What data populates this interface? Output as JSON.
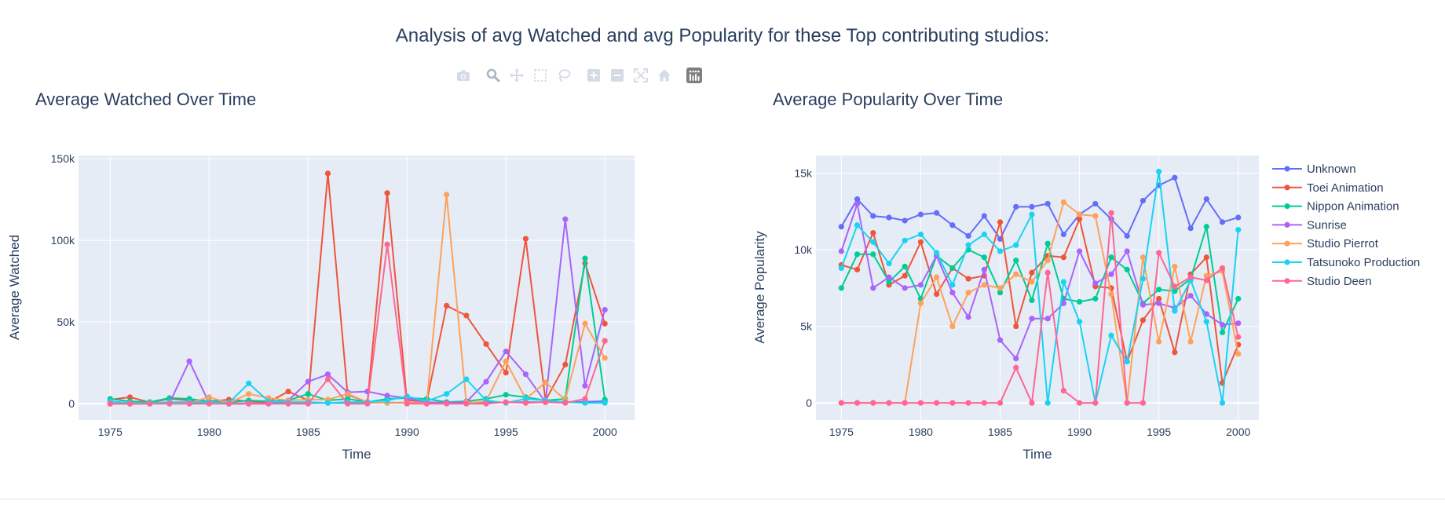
{
  "title": "Analysis of avg Watched and avg Popularity for these Top contributing studios:",
  "toolbar": {
    "icons": [
      "camera-icon",
      "zoom-icon",
      "pan-icon",
      "box-select-icon",
      "lasso-icon",
      "zoom-in-icon",
      "zoom-out-icon",
      "autoscale-icon",
      "reset-axes-icon",
      "plotly-logo-icon"
    ]
  },
  "colors": {
    "background": "#ffffff",
    "plot_bg": "#e5ecf6",
    "grid": "#ffffff",
    "text": "#2a3f5f",
    "series": [
      "#636efa",
      "#EF553B",
      "#00cc96",
      "#ab63fa",
      "#FFA15A",
      "#19d3f3",
      "#FF6692"
    ]
  },
  "chart_data": [
    {
      "type": "line",
      "title": "Average Watched Over Time",
      "xlabel": "Time",
      "ylabel": "Average Watched",
      "xlim": [
        1973.4,
        2001.5
      ],
      "ylim": [
        -10000,
        152000
      ],
      "xticks": [
        1975,
        1980,
        1985,
        1990,
        1995,
        2000
      ],
      "xtick_labels": [
        "1975",
        "1980",
        "1985",
        "1990",
        "1995",
        "2000"
      ],
      "yticks": [
        0,
        50000,
        100000,
        150000
      ],
      "ytick_labels": [
        "0",
        "50k",
        "100k",
        "150k"
      ],
      "x": [
        1975,
        1976,
        1977,
        1978,
        1979,
        1980,
        1981,
        1982,
        1983,
        1984,
        1985,
        1986,
        1987,
        1988,
        1989,
        1990,
        1991,
        1992,
        1993,
        1994,
        1995,
        1996,
        1997,
        1998,
        1999,
        2000
      ],
      "series": [
        {
          "name": "Unknown",
          "values": [
            200,
            200,
            200,
            200,
            200,
            300,
            300,
            300,
            300,
            400,
            500,
            500,
            500,
            600,
            600,
            600,
            700,
            700,
            700,
            800,
            800,
            900,
            900,
            1000,
            1200,
            1500
          ]
        },
        {
          "name": "Toei Animation",
          "values": [
            2500,
            4000,
            800,
            3000,
            2000,
            1500,
            2500,
            1500,
            1000,
            7500,
            2000,
            141000,
            5500,
            1000,
            129000,
            2000,
            1500,
            60000,
            54000,
            36500,
            19000,
            101000,
            2000,
            24000,
            86000,
            49000
          ]
        },
        {
          "name": "Nippon Animation",
          "values": [
            3000,
            1500,
            1000,
            3500,
            3000,
            1500,
            1000,
            2000,
            1500,
            2000,
            6000,
            2000,
            3000,
            1000,
            3000,
            3500,
            3000,
            1000,
            1500,
            3000,
            5500,
            4000,
            2000,
            3000,
            89000,
            2500
          ]
        },
        {
          "name": "Sunrise",
          "values": [
            0,
            0,
            0,
            500,
            26000,
            500,
            0,
            0,
            0,
            2000,
            13500,
            18000,
            7000,
            7500,
            5000,
            3500,
            1000,
            500,
            1000,
            13500,
            32000,
            18000,
            1000,
            113000,
            11000,
            57500
          ]
        },
        {
          "name": "Studio Pierrot",
          "values": [
            0,
            0,
            0,
            500,
            500,
            4000,
            500,
            6000,
            3500,
            2000,
            2500,
            2500,
            6000,
            1000,
            500,
            500,
            500,
            128000,
            500,
            1500,
            26000,
            3000,
            13000,
            2500,
            49000,
            28000
          ]
        },
        {
          "name": "Tatsunoko Production",
          "values": [
            1500,
            500,
            500,
            1000,
            1000,
            1000,
            500,
            12500,
            1500,
            1000,
            1000,
            500,
            1000,
            1000,
            2000,
            4500,
            1500,
            6000,
            15000,
            2000,
            500,
            3000,
            2000,
            1000,
            500,
            500
          ]
        },
        {
          "name": "Studio Deen",
          "values": [
            0,
            0,
            0,
            0,
            0,
            0,
            0,
            0,
            0,
            0,
            0,
            15000,
            0,
            0,
            97500,
            0,
            0,
            0,
            0,
            0,
            1000,
            500,
            1000,
            500,
            3000,
            38500
          ]
        }
      ]
    },
    {
      "type": "line",
      "title": "Average Popularity Over Time",
      "xlabel": "Time",
      "ylabel": "Average Popularity",
      "xlim": [
        1973.4,
        2001.3
      ],
      "ylim": [
        -1120,
        16150
      ],
      "xticks": [
        1975,
        1980,
        1985,
        1990,
        1995,
        2000
      ],
      "xtick_labels": [
        "1975",
        "1980",
        "1985",
        "1990",
        "1995",
        "2000"
      ],
      "yticks": [
        0,
        5000,
        10000,
        15000
      ],
      "ytick_labels": [
        "0",
        "5k",
        "10k",
        "15k"
      ],
      "x": [
        1975,
        1976,
        1977,
        1978,
        1979,
        1980,
        1981,
        1982,
        1983,
        1984,
        1985,
        1986,
        1987,
        1988,
        1989,
        1990,
        1991,
        1992,
        1993,
        1994,
        1995,
        1996,
        1997,
        1998,
        1999,
        2000
      ],
      "series": [
        {
          "name": "Unknown",
          "values": [
            11500,
            13300,
            12200,
            12100,
            11900,
            12300,
            12400,
            11600,
            10900,
            12200,
            10700,
            12800,
            12800,
            13000,
            11000,
            12300,
            13000,
            12000,
            10900,
            13200,
            14200,
            14700,
            11400,
            13300,
            11800,
            12100
          ]
        },
        {
          "name": "Toei Animation",
          "values": [
            9000,
            8700,
            11100,
            7700,
            8300,
            10500,
            7100,
            8800,
            8100,
            8300,
            11800,
            5000,
            8500,
            9600,
            9500,
            12000,
            7600,
            7500,
            2700,
            5400,
            6800,
            3300,
            8400,
            9500,
            1300,
            3800
          ]
        },
        {
          "name": "Nippon Animation",
          "values": [
            7500,
            9700,
            9700,
            7900,
            8900,
            6800,
            9600,
            8800,
            10000,
            9500,
            7200,
            9300,
            6700,
            10400,
            6800,
            6600,
            6800,
            9500,
            8700,
            6500,
            7400,
            7300,
            8100,
            11500,
            4600,
            6800
          ]
        },
        {
          "name": "Sunrise",
          "values": [
            9900,
            13000,
            7500,
            8200,
            7500,
            7700,
            9600,
            7200,
            5600,
            8700,
            4100,
            2900,
            5500,
            5500,
            6500,
            9900,
            7800,
            8400,
            9900,
            6400,
            6500,
            6200,
            7000,
            5800,
            5100,
            5200
          ]
        },
        {
          "name": "Studio Pierrot",
          "values": [
            0,
            0,
            0,
            0,
            0,
            6500,
            8200,
            5000,
            7200,
            7700,
            7500,
            8400,
            7900,
            9300,
            13100,
            12300,
            12200,
            7100,
            0,
            9500,
            4000,
            8900,
            4000,
            8300,
            8600,
            3200
          ]
        },
        {
          "name": "Tatsunoko Production",
          "values": [
            8800,
            11600,
            10500,
            9100,
            10600,
            11000,
            9800,
            7700,
            10300,
            11000,
            9900,
            10300,
            12300,
            0,
            7900,
            5300,
            0,
            4400,
            2700,
            8100,
            15100,
            6000,
            8000,
            5300,
            0,
            11300
          ]
        },
        {
          "name": "Studio Deen",
          "values": [
            0,
            0,
            0,
            0,
            0,
            0,
            0,
            0,
            0,
            0,
            0,
            2300,
            0,
            8500,
            800,
            0,
            0,
            12400,
            0,
            0,
            9800,
            7600,
            8200,
            8000,
            8800,
            4300
          ]
        }
      ]
    }
  ]
}
